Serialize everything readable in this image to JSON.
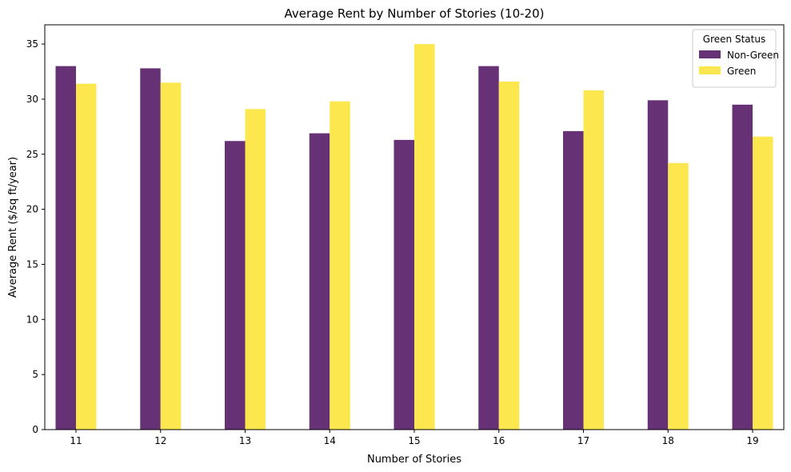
{
  "chart_data": {
    "type": "bar",
    "title": "Average Rent by Number of Stories (10-20)",
    "xlabel": "Number of Stories",
    "ylabel": "Average Rent ($/sq ft/year)",
    "categories": [
      "11",
      "12",
      "13",
      "14",
      "15",
      "16",
      "17",
      "18",
      "19"
    ],
    "ylim": [
      0,
      36.75
    ],
    "yticks": [
      0,
      5,
      10,
      15,
      20,
      25,
      30,
      35
    ],
    "grid": false,
    "legend": {
      "title": "Green Status",
      "placement": "top-right"
    },
    "series": [
      {
        "name": "Non-Green",
        "color": "#663275",
        "values": [
          33.0,
          32.8,
          26.2,
          26.9,
          26.3,
          33.0,
          27.1,
          29.9,
          29.5
        ]
      },
      {
        "name": "Green",
        "color": "#fde74f",
        "values": [
          31.4,
          31.5,
          29.1,
          29.8,
          35.0,
          31.6,
          30.8,
          24.2,
          26.6
        ]
      }
    ]
  }
}
